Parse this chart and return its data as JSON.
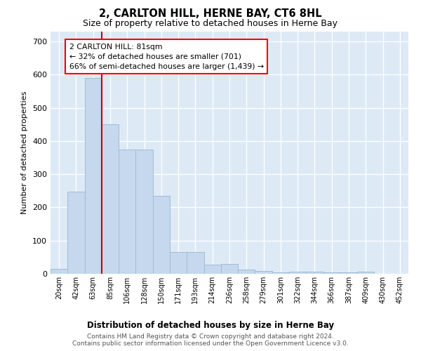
{
  "title": "2, CARLTON HILL, HERNE BAY, CT6 8HL",
  "subtitle": "Size of property relative to detached houses in Herne Bay",
  "xlabel": "Distribution of detached houses by size in Herne Bay",
  "ylabel": "Number of detached properties",
  "categories": [
    "20sqm",
    "42sqm",
    "63sqm",
    "85sqm",
    "106sqm",
    "128sqm",
    "150sqm",
    "171sqm",
    "193sqm",
    "214sqm",
    "236sqm",
    "258sqm",
    "279sqm",
    "301sqm",
    "322sqm",
    "344sqm",
    "366sqm",
    "387sqm",
    "409sqm",
    "430sqm",
    "452sqm"
  ],
  "bar_values": [
    15,
    248,
    590,
    450,
    375,
    375,
    235,
    65,
    65,
    28,
    30,
    12,
    8,
    5,
    7,
    7,
    4,
    4,
    7,
    1,
    1
  ],
  "bar_color": "#c5d8ed",
  "bar_edge_color": "#a0bcd6",
  "vline_color": "#cc0000",
  "vline_index": 3,
  "annotation_text": "2 CARLTON HILL: 81sqm\n← 32% of detached houses are smaller (701)\n66% of semi-detached houses are larger (1,439) →",
  "ylim_max": 730,
  "yticks": [
    0,
    100,
    200,
    300,
    400,
    500,
    600,
    700
  ],
  "plot_bg_color": "#ddeaf6",
  "grid_color": "#c0d0e0",
  "footer": "Contains HM Land Registry data © Crown copyright and database right 2024.\nContains public sector information licensed under the Open Government Licence v3.0."
}
